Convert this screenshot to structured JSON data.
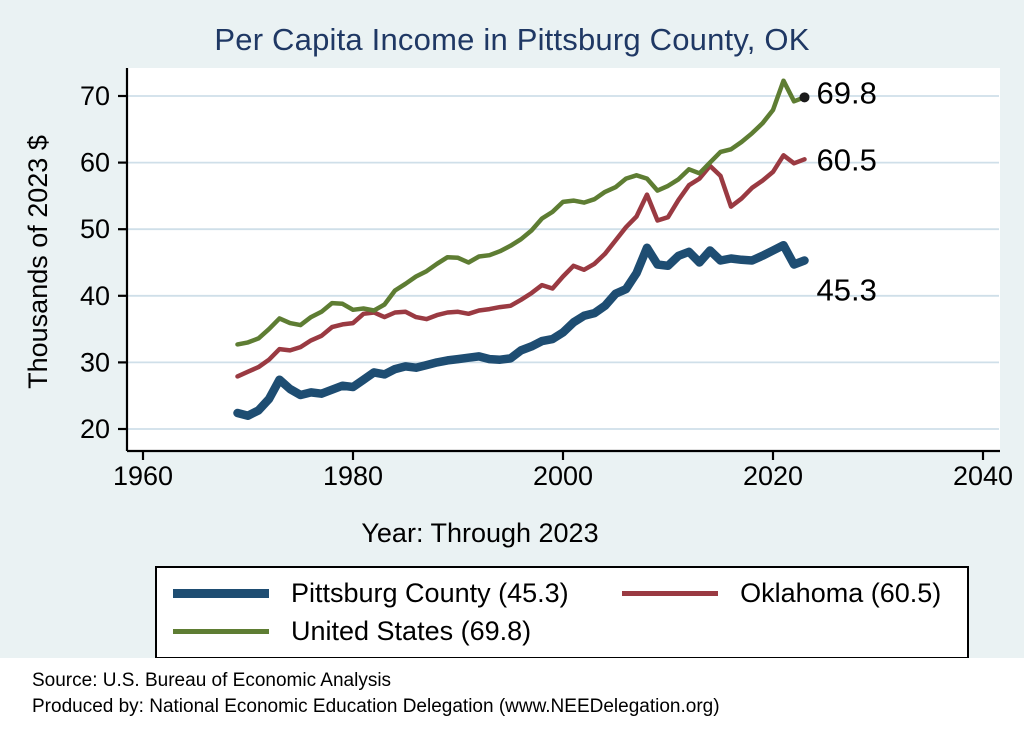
{
  "footer": {
    "source": "Source: U.S. Bureau of Economic Analysis",
    "produced_by": "Produced by: National Economic Education Delegation (www.NEEDelegation.org)"
  },
  "legend": {
    "items": [
      {
        "label": "Pittsburg County (45.3)"
      },
      {
        "label": "Oklahoma (60.5)"
      },
      {
        "label": "United States (69.8)"
      }
    ]
  },
  "colors": {
    "background": "#eaf2f3",
    "plot_background": "#ffffff",
    "title": "#1f3864",
    "gridline": "#cfdfe9",
    "axis": "#000000"
  },
  "chart_data": {
    "type": "line",
    "title": "Per Capita Income in Pittsburg County, OK",
    "ylabel": "Thousands of 2023 $",
    "x": {
      "label": "Year: Through 2023",
      "start": 1969,
      "end": 2023,
      "step": 1
    },
    "x_ticks": [
      1960,
      1980,
      2000,
      2020,
      2040
    ],
    "y_ticks": [
      20,
      30,
      40,
      50,
      60,
      70
    ],
    "xlim": [
      1958.5,
      2041.6
    ],
    "ylim": [
      16.7,
      74.2
    ],
    "grid": "horizontal",
    "legend_position": "bottom",
    "series": [
      {
        "name": "Pittsburg County",
        "color": "#1e4d72",
        "line_width": 8.5,
        "end_label": "45.3",
        "end_dot": false,
        "values": [
          22.4,
          22.0,
          22.8,
          24.5,
          27.4,
          26.0,
          25.1,
          25.5,
          25.3,
          25.9,
          26.5,
          26.3,
          27.4,
          28.5,
          28.2,
          29.0,
          29.4,
          29.2,
          29.6,
          30.0,
          30.3,
          30.5,
          30.7,
          30.9,
          30.5,
          30.4,
          30.6,
          31.8,
          32.4,
          33.2,
          33.5,
          34.5,
          36.0,
          37.0,
          37.4,
          38.5,
          40.3,
          41.0,
          43.4,
          47.2,
          44.7,
          44.5,
          46.0,
          46.6,
          45.0,
          46.8,
          45.3,
          45.6,
          45.4,
          45.3,
          46.0,
          46.8,
          47.6,
          44.7,
          45.3
        ]
      },
      {
        "name": "Oklahoma",
        "color": "#9a3a42",
        "line_width": 4.5,
        "end_label": "60.5",
        "end_dot": false,
        "values": [
          27.9,
          28.6,
          29.3,
          30.4,
          32.0,
          31.8,
          32.3,
          33.3,
          34.0,
          35.3,
          35.7,
          35.9,
          37.3,
          37.5,
          36.8,
          37.5,
          37.6,
          36.8,
          36.5,
          37.1,
          37.5,
          37.6,
          37.3,
          37.8,
          38.0,
          38.3,
          38.5,
          39.4,
          40.4,
          41.6,
          41.1,
          42.9,
          44.5,
          43.9,
          44.8,
          46.3,
          48.3,
          50.3,
          51.9,
          55.2,
          51.3,
          51.8,
          54.4,
          56.6,
          57.6,
          59.5,
          58.0,
          53.4,
          54.6,
          56.2,
          57.3,
          58.6,
          61.1,
          59.9,
          60.5
        ]
      },
      {
        "name": "United States",
        "color": "#5e7d33",
        "line_width": 4.5,
        "end_label": "69.8",
        "end_dot": true,
        "values": [
          32.7,
          33.0,
          33.6,
          35.0,
          36.6,
          35.9,
          35.6,
          36.8,
          37.6,
          38.9,
          38.8,
          37.9,
          38.1,
          37.8,
          38.7,
          40.8,
          41.8,
          42.9,
          43.7,
          44.8,
          45.8,
          45.7,
          45.0,
          45.9,
          46.1,
          46.7,
          47.5,
          48.5,
          49.8,
          51.6,
          52.6,
          54.1,
          54.3,
          54.0,
          54.5,
          55.6,
          56.3,
          57.6,
          58.1,
          57.6,
          55.8,
          56.5,
          57.5,
          59.0,
          58.4,
          60.0,
          61.6,
          62.0,
          63.1,
          64.4,
          65.9,
          67.9,
          72.3,
          69.2,
          69.8
        ]
      }
    ]
  }
}
